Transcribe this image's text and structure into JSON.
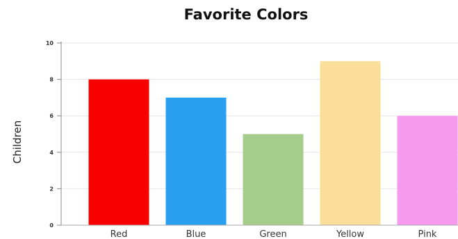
{
  "chart_data": {
    "type": "bar",
    "title": "Favorite Colors",
    "xlabel": "",
    "ylabel": "Children",
    "categories": [
      "Red",
      "Blue",
      "Green",
      "Yellow",
      "Pink"
    ],
    "values": [
      8,
      7,
      5,
      9,
      6
    ],
    "colors": [
      "#f60000",
      "#2a9ff0",
      "#a4cc8b",
      "#fbdf99",
      "#f69af0"
    ],
    "ylim": [
      0,
      10
    ],
    "yticks": [
      "0",
      "2",
      "4",
      "6",
      "8",
      "10"
    ],
    "grid": true,
    "legend": "none"
  }
}
